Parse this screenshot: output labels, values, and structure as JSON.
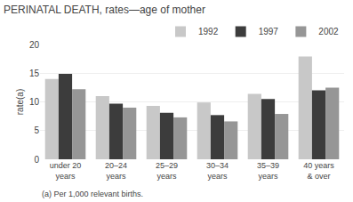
{
  "chart_data": {
    "type": "bar",
    "title": "PERINATAL DEATH, rates—age of mother",
    "ylabel": "rate(a)",
    "annotations": [
      "(a) Per 1,000 relevant births."
    ],
    "categories": [
      "under 20\nyears",
      "20–24\nyears",
      "25–29\nyears",
      "30–34\nyears",
      "35–39\nyears",
      "40 years\n& over"
    ],
    "series": [
      {
        "name": "1992",
        "color": "#c8c8c8",
        "values": [
          14.0,
          11.0,
          9.3,
          9.9,
          11.4,
          17.9
        ]
      },
      {
        "name": "1997",
        "color": "#3c3c3c",
        "values": [
          14.9,
          9.7,
          8.1,
          7.7,
          10.5,
          12.0
        ]
      },
      {
        "name": "2002",
        "color": "#969696",
        "values": [
          12.2,
          9.0,
          7.3,
          6.6,
          7.9,
          12.5
        ]
      }
    ],
    "ylim": [
      0,
      20
    ],
    "yticks": [
      0,
      5,
      10,
      15,
      20
    ],
    "grid": true,
    "legend": "upper right"
  }
}
